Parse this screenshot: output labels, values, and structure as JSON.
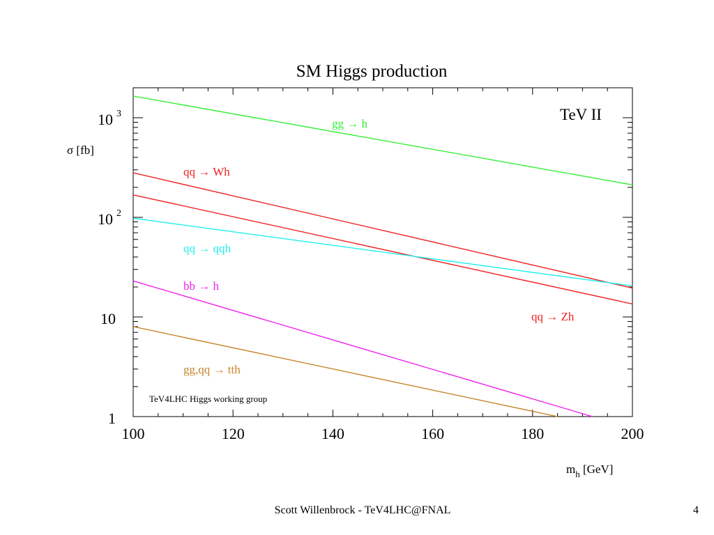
{
  "footer": {
    "credit": "Scott Willenbrock - TeV4LHC@FNAL",
    "page_number": "4"
  },
  "chart_data": {
    "type": "line",
    "title": "SM Higgs production",
    "xlabel": "m",
    "xlabel_sub": "h",
    "xlabel_unit": " [GeV]",
    "ylabel": "σ [fb]",
    "xlim": [
      100,
      200
    ],
    "ylim": [
      1,
      2000
    ],
    "yscale": "log",
    "grid": false,
    "x_ticks": [
      {
        "value": 100,
        "label": "100"
      },
      {
        "value": 120,
        "label": "120"
      },
      {
        "value": 140,
        "label": "140"
      },
      {
        "value": 160,
        "label": "160"
      },
      {
        "value": 180,
        "label": "180"
      },
      {
        "value": 200,
        "label": "200"
      }
    ],
    "y_ticks": [
      {
        "value": 1,
        "label": "1"
      },
      {
        "value": 10,
        "label": "10"
      },
      {
        "value": 100,
        "label": "10",
        "exp": "2"
      },
      {
        "value": 1000,
        "label": "10",
        "exp": "3"
      }
    ],
    "annotations": {
      "collider": "TeV II",
      "group": "TeV4LHC Higgs working group"
    },
    "series": [
      {
        "name": "gg → h",
        "color": "#33ee33",
        "x": [
          100,
          200
        ],
        "y": [
          1650,
          212
        ],
        "label_at": [
          476,
          183
        ]
      },
      {
        "name": "qq → Wh",
        "color": "#ee2222",
        "x": [
          100,
          200
        ],
        "y": [
          280,
          19.5
        ],
        "label_at": [
          263,
          252
        ]
      },
      {
        "name": "qq → Zh",
        "color": "#ee2222",
        "x": [
          100,
          200
        ],
        "y": [
          168,
          13.5
        ],
        "label_at": [
          762,
          460
        ]
      },
      {
        "name": "qq → qqh",
        "color": "#22eeee",
        "x": [
          100,
          200
        ],
        "y": [
          98,
          20.5
        ],
        "label_at": [
          263,
          362
        ]
      },
      {
        "name": "bb → h",
        "color": "#ee22ee",
        "x": [
          100,
          192
        ],
        "y": [
          23,
          1
        ],
        "label_at": [
          263,
          416
        ]
      },
      {
        "name": "gg,qq → tth",
        "color": "#c8842a",
        "x": [
          100,
          185
        ],
        "y": [
          8,
          1
        ],
        "label_at": [
          263,
          536
        ]
      }
    ]
  }
}
